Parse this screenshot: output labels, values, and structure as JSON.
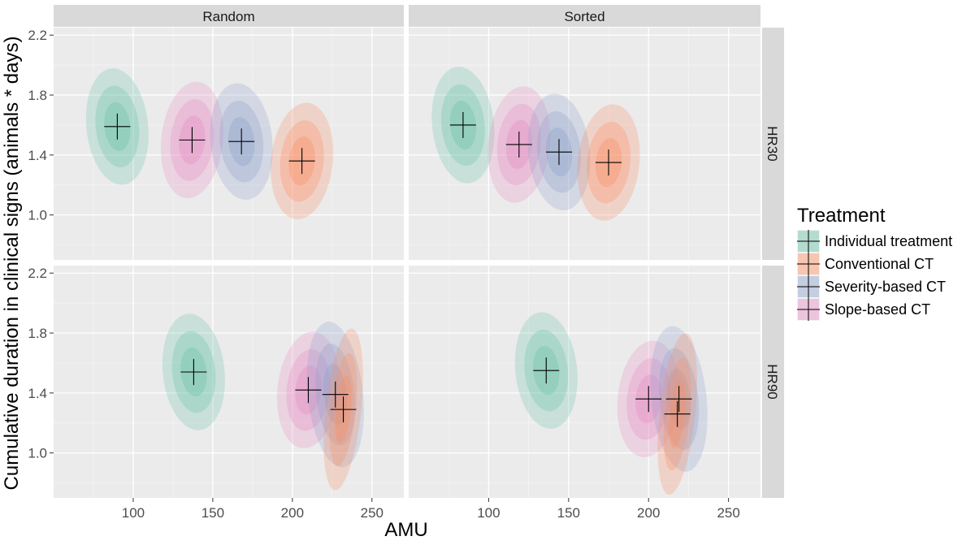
{
  "chart_data": {
    "type": "density2d-facet",
    "xlabel": "AMU",
    "ylabel": "Cumulative duration in clinical signs (animals * days)",
    "columns": [
      "Random",
      "Sorted"
    ],
    "rows": [
      "HR30",
      "HR90"
    ],
    "xlim": [
      50,
      270
    ],
    "ylim": [
      0.7,
      2.25
    ],
    "xticks": [
      100,
      150,
      200,
      250
    ],
    "yticks": [
      1.0,
      1.4,
      1.8,
      2.2
    ],
    "legend": {
      "title": "Treatment",
      "position": "right",
      "entries": [
        "Individual treatment",
        "Conventional CT",
        "Severity-based CT",
        "Slope-based CT"
      ]
    },
    "series": [
      {
        "name": "Individual treatment",
        "color": "#66c2a5"
      },
      {
        "name": "Conventional CT",
        "color": "#fc8d62"
      },
      {
        "name": "Severity-based CT",
        "color": "#8da0cb"
      },
      {
        "name": "Slope-based CT",
        "color": "#e78ac3"
      }
    ],
    "panels": [
      {
        "column": "Random",
        "row": "HR30",
        "centroids": [
          {
            "series": "Individual treatment",
            "x": 90,
            "y": 1.59
          },
          {
            "series": "Slope-based CT",
            "x": 137,
            "y": 1.5
          },
          {
            "series": "Severity-based CT",
            "x": 168,
            "y": 1.49
          },
          {
            "series": "Conventional CT",
            "x": 206,
            "y": 1.36
          }
        ]
      },
      {
        "column": "Sorted",
        "row": "HR30",
        "centroids": [
          {
            "series": "Individual treatment",
            "x": 84,
            "y": 1.6
          },
          {
            "series": "Slope-based CT",
            "x": 119,
            "y": 1.47
          },
          {
            "series": "Severity-based CT",
            "x": 144,
            "y": 1.42
          },
          {
            "series": "Conventional CT",
            "x": 175,
            "y": 1.35
          }
        ]
      },
      {
        "column": "Random",
        "row": "HR90",
        "centroids": [
          {
            "series": "Individual treatment",
            "x": 138,
            "y": 1.54
          },
          {
            "series": "Slope-based CT",
            "x": 210,
            "y": 1.42
          },
          {
            "series": "Severity-based CT",
            "x": 227,
            "y": 1.39
          },
          {
            "series": "Conventional CT",
            "x": 232,
            "y": 1.29
          }
        ]
      },
      {
        "column": "Sorted",
        "row": "HR90",
        "centroids": [
          {
            "series": "Individual treatment",
            "x": 136,
            "y": 1.55
          },
          {
            "series": "Slope-based CT",
            "x": 200,
            "y": 1.36
          },
          {
            "series": "Severity-based CT",
            "x": 219,
            "y": 1.36
          },
          {
            "series": "Conventional CT",
            "x": 218,
            "y": 1.26
          }
        ]
      }
    ]
  }
}
